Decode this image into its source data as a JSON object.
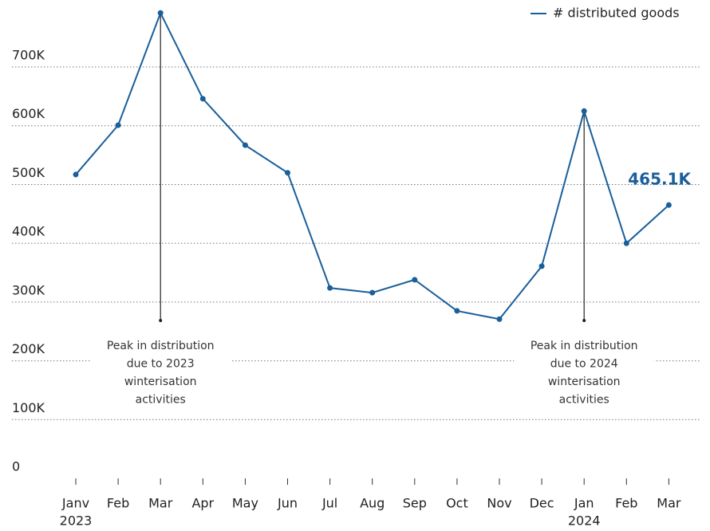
{
  "chart_data": {
    "type": "line",
    "categories": [
      "Janv",
      "Feb",
      "Mar",
      "Apr",
      "May",
      "Jun",
      "Jul",
      "Aug",
      "Sep",
      "Oct",
      "Nov",
      "Dec",
      "Jan",
      "Feb",
      "Mar"
    ],
    "year_labels": [
      {
        "index": 0,
        "label": "2023"
      },
      {
        "index": 12,
        "label": "2024"
      }
    ],
    "series": [
      {
        "name": "# distributed goods",
        "color": "#1a5e9a",
        "values": [
          517000,
          601000,
          792000,
          646000,
          567000,
          520000,
          324000,
          316000,
          338000,
          285000,
          271000,
          361000,
          625000,
          400000,
          465100
        ]
      }
    ],
    "last_value_label": "465.1K",
    "ylim": [
      0,
      814000
    ],
    "yticks": [
      0,
      {
        "value": 100000,
        "label": "100K"
      },
      {
        "value": 200000,
        "label": "200K"
      },
      {
        "value": 300000,
        "label": "300K"
      },
      {
        "value": 400000,
        "label": "400K"
      },
      {
        "value": 500000,
        "label": "500K"
      },
      {
        "value": 600000,
        "label": "600K"
      },
      {
        "value": 700000,
        "label": "700K"
      }
    ],
    "grid": true,
    "legend": "top-right",
    "annotations": [
      {
        "index": 2,
        "lines": [
          "Peak in distribution",
          "due to 2023",
          "winterisation",
          "activities"
        ]
      },
      {
        "index": 12,
        "lines": [
          "Peak in distribution",
          "due to 2024",
          "winterisation",
          "activities"
        ]
      }
    ]
  }
}
